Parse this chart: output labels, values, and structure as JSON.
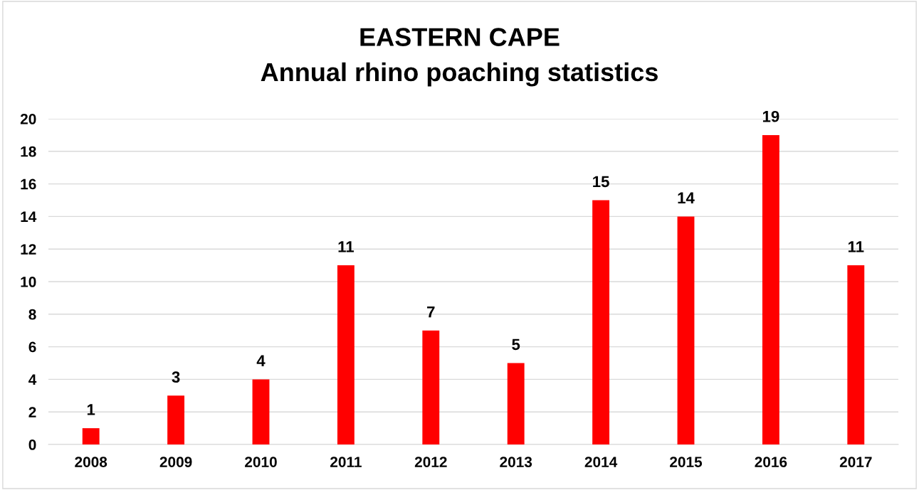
{
  "chart_data": {
    "type": "bar",
    "title": "EASTERN CAPE\nAnnual rhino poaching statistics",
    "categories": [
      "2008",
      "2009",
      "2010",
      "2011",
      "2012",
      "2013",
      "2014",
      "2015",
      "2016",
      "2017"
    ],
    "values": [
      1,
      3,
      4,
      11,
      7,
      5,
      15,
      14,
      19,
      11
    ],
    "color": "#ff0000",
    "ylim": [
      0,
      20
    ],
    "yticks": [
      0,
      2,
      4,
      6,
      8,
      10,
      12,
      14,
      16,
      18,
      20
    ],
    "grid": "y",
    "data_labels": true
  }
}
